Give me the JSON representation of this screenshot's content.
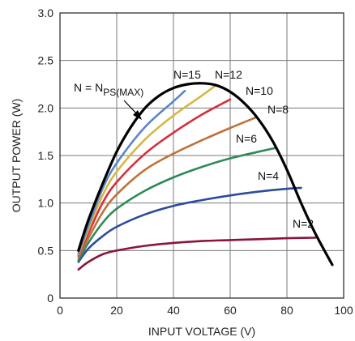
{
  "chart_data": {
    "type": "line",
    "xlabel": "INPUT VOLTAGE (V)",
    "ylabel": "OUTPUT POWER (W)",
    "xlim": [
      0,
      100
    ],
    "ylim": [
      0,
      3.0
    ],
    "xticks": [
      0,
      20,
      40,
      60,
      80,
      100
    ],
    "xtick_labels": [
      "0",
      "20",
      "40",
      "60",
      "80",
      "100"
    ],
    "yticks": [
      0,
      0.5,
      1.0,
      1.5,
      2.0,
      2.5,
      3.0
    ],
    "ytick_labels": [
      "0",
      "0.5",
      "1.0",
      "1.5",
      "2.0",
      "2.5",
      "3.0"
    ],
    "grid": true,
    "envelope": {
      "label_main": "N = N",
      "label_sub": "PS(MAX)",
      "color": "#000000",
      "x": [
        6.5,
        10,
        15,
        20,
        25,
        30,
        35,
        40,
        45,
        50,
        55,
        60,
        65,
        70,
        75,
        80,
        85,
        90,
        96
      ],
      "y": [
        0.5,
        0.82,
        1.2,
        1.54,
        1.8,
        2.0,
        2.13,
        2.21,
        2.25,
        2.26,
        2.24,
        2.17,
        2.05,
        1.88,
        1.65,
        1.35,
        1.0,
        0.68,
        0.35
      ]
    },
    "series": [
      {
        "name": "N=2",
        "color": "#8b1538",
        "x": [
          6.5,
          10,
          15,
          20,
          30,
          40,
          50,
          60,
          70,
          80,
          90
        ],
        "y": [
          0.3,
          0.38,
          0.46,
          0.5,
          0.55,
          0.58,
          0.6,
          0.61,
          0.62,
          0.63,
          0.635
        ]
      },
      {
        "name": "N=4",
        "color": "#2d4b9e",
        "x": [
          6.5,
          10,
          15,
          20,
          30,
          40,
          50,
          60,
          70,
          80,
          85
        ],
        "y": [
          0.38,
          0.52,
          0.65,
          0.75,
          0.88,
          0.97,
          1.03,
          1.08,
          1.12,
          1.15,
          1.16
        ]
      },
      {
        "name": "N=6",
        "color": "#2e8b57",
        "x": [
          6.5,
          10,
          15,
          20,
          30,
          40,
          50,
          60,
          70,
          76
        ],
        "y": [
          0.4,
          0.58,
          0.79,
          0.94,
          1.13,
          1.27,
          1.38,
          1.47,
          1.54,
          1.58
        ]
      },
      {
        "name": "N=8",
        "color": "#c0713a",
        "x": [
          6.5,
          10,
          15,
          20,
          30,
          40,
          50,
          60,
          69
        ],
        "y": [
          0.43,
          0.63,
          0.9,
          1.09,
          1.35,
          1.52,
          1.66,
          1.79,
          1.9
        ]
      },
      {
        "name": "N=10",
        "color": "#d62f3a",
        "x": [
          6.5,
          10,
          15,
          20,
          30,
          40,
          50,
          60
        ],
        "y": [
          0.45,
          0.68,
          1.0,
          1.22,
          1.52,
          1.74,
          1.93,
          2.09
        ]
      },
      {
        "name": "N=12",
        "color": "#d6b840",
        "x": [
          6.5,
          10,
          15,
          20,
          30,
          40,
          50,
          55
        ],
        "y": [
          0.46,
          0.72,
          1.08,
          1.33,
          1.67,
          1.92,
          2.13,
          2.24
        ]
      },
      {
        "name": "N=15",
        "color": "#5b86c8",
        "x": [
          6.5,
          10,
          15,
          20,
          30,
          40,
          44
        ],
        "y": [
          0.47,
          0.76,
          1.15,
          1.42,
          1.8,
          2.07,
          2.18
        ]
      }
    ]
  }
}
